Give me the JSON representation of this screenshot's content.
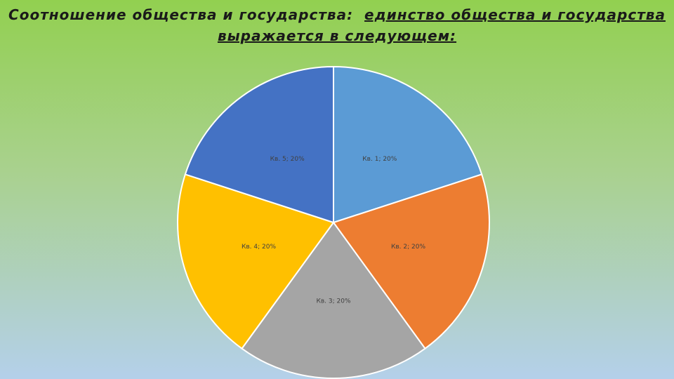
{
  "chart_data": {
    "type": "pie",
    "title": "Соотношение общества и государства:",
    "subtitle": "единство общества и государства выражается в следующем:",
    "values": [
      20,
      20,
      20,
      20,
      20
    ],
    "value_labels": [
      "Кв. 1; 20%",
      "Кв. 2; 20%",
      "Кв. 3; 20%",
      "Кв. 4; 20%",
      "Кв. 5; 20%"
    ],
    "colors": [
      "#5b9bd5",
      "#ed7d31",
      "#a5a5a5",
      "#ffc000",
      "#4472c4"
    ]
  }
}
